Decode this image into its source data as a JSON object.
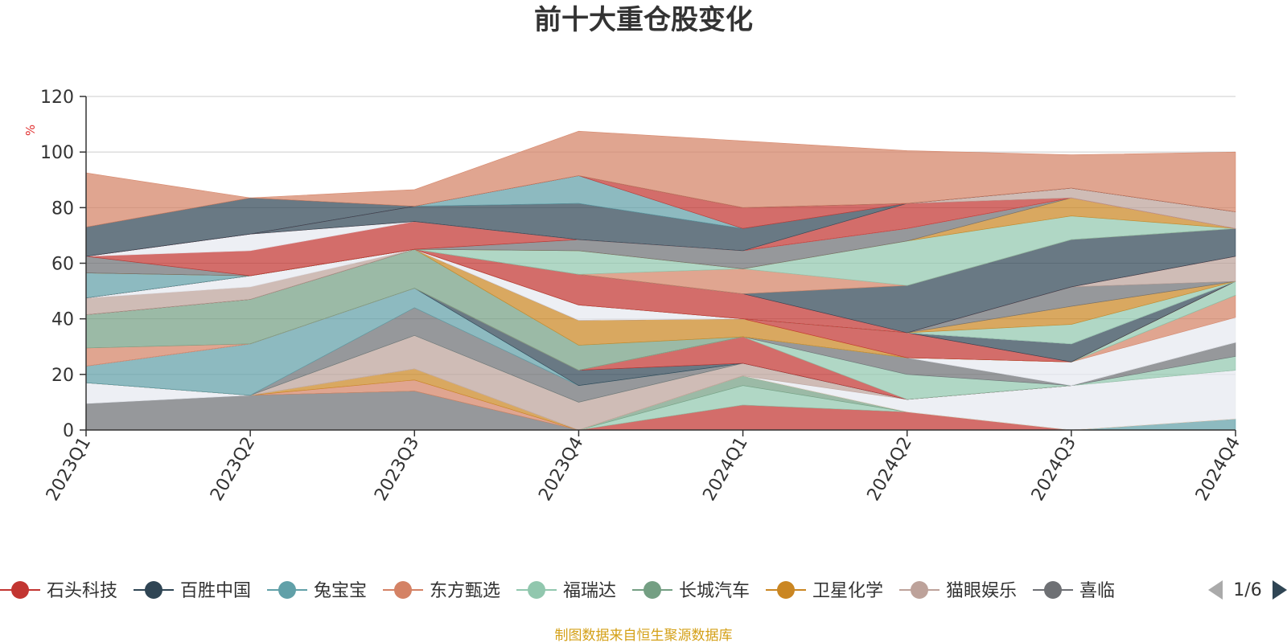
{
  "chart_data": {
    "type": "area",
    "title": "前十大重仓股变化",
    "ylabel": "%",
    "xlabel": "",
    "ylim": [
      0,
      120
    ],
    "yticks": [
      0,
      20,
      40,
      60,
      80,
      100,
      120
    ],
    "categories": [
      "2023Q1",
      "2023Q2",
      "2023Q3",
      "2023Q4",
      "2024Q1",
      "2024Q2",
      "2024Q3",
      "2024Q4"
    ],
    "grid": true,
    "legend_position": "bottom",
    "legend": {
      "items": [
        {
          "name": "石头科技",
          "color": "#c23531"
        },
        {
          "name": "百胜中国",
          "color": "#2f4554"
        },
        {
          "name": "兔宝宝",
          "color": "#61a0a8"
        },
        {
          "name": "东方甄选",
          "color": "#d48265"
        },
        {
          "name": "福瑞达",
          "color": "#91c7ae"
        },
        {
          "name": "长城汽车",
          "color": "#749f83"
        },
        {
          "name": "卫星化学",
          "color": "#ca8622"
        },
        {
          "name": "猫眼娱乐",
          "color": "#bda29a"
        },
        {
          "name": "喜临",
          "color": "#6e7074"
        }
      ],
      "page": "1/6"
    },
    "series": [
      {
        "color": "#6e7074",
        "values": [
          9.5,
          12.5,
          14,
          0,
          0,
          0,
          0,
          0
        ]
      },
      {
        "color": "#e6e9f0",
        "values": [
          7.5,
          0,
          0,
          0,
          0,
          0,
          0,
          0
        ]
      },
      {
        "color": "#c23531",
        "values": [
          0,
          0,
          0,
          0,
          9,
          6.5,
          0,
          0
        ]
      },
      {
        "color": "#91c7ae",
        "values": [
          0,
          0,
          0,
          0,
          7,
          0,
          0,
          0
        ]
      },
      {
        "color": "#749f83",
        "values": [
          0,
          0,
          0,
          0,
          3.5,
          0,
          0,
          0
        ]
      },
      {
        "color": "#61a0a8",
        "values": [
          0,
          0,
          0,
          0,
          0,
          0,
          0,
          4
        ]
      },
      {
        "color": "#d48265",
        "values": [
          0,
          0,
          4,
          0,
          0,
          0,
          0,
          0
        ]
      },
      {
        "color": "#ca8622",
        "values": [
          0,
          0,
          4,
          0,
          0,
          0,
          0,
          0
        ]
      },
      {
        "color": "#e6e9f0",
        "values": [
          0,
          0,
          0,
          0,
          0,
          4.5,
          16,
          17.5
        ]
      },
      {
        "color": "#bda29a",
        "values": [
          0,
          0,
          12,
          10,
          4.5,
          0,
          0,
          0
        ]
      },
      {
        "color": "#91c7ae",
        "values": [
          0,
          0,
          0,
          0,
          0,
          0,
          0,
          5
        ]
      },
      {
        "color": "#6e7074",
        "values": [
          0,
          0,
          10,
          6,
          0,
          0,
          0,
          5
        ]
      },
      {
        "color": "#61a0a8",
        "values": [
          6,
          18.5,
          7,
          0,
          0,
          0,
          0,
          0
        ]
      },
      {
        "color": "#2f4554",
        "values": [
          0,
          0,
          0,
          5.5,
          0,
          0,
          0,
          0
        ]
      },
      {
        "color": "#c23531",
        "values": [
          0,
          0,
          0,
          0,
          9.5,
          0,
          0,
          0
        ]
      },
      {
        "color": "#91c7ae",
        "values": [
          0,
          0,
          0,
          0,
          0,
          9,
          0,
          0
        ]
      },
      {
        "color": "#6e7074",
        "values": [
          0,
          0,
          0,
          0,
          0,
          6,
          0,
          0
        ]
      },
      {
        "color": "#e6e9f0",
        "values": [
          0,
          0,
          0,
          0,
          0,
          0,
          8.5,
          9
        ]
      },
      {
        "color": "#d48265",
        "values": [
          6.5,
          0,
          0,
          0,
          0,
          0,
          0,
          8
        ]
      },
      {
        "color": "#749f83",
        "values": [
          12,
          16,
          14,
          9,
          0,
          0,
          0,
          0
        ]
      },
      {
        "color": "#91c7ae",
        "values": [
          0,
          0,
          0,
          0,
          0,
          0,
          0,
          5
        ]
      },
      {
        "color": "#ca8622",
        "values": [
          0,
          0,
          0,
          9,
          6.5,
          0,
          0,
          0
        ]
      },
      {
        "color": "#c23531",
        "values": [
          0,
          0,
          0,
          0,
          0,
          9,
          0,
          0
        ]
      },
      {
        "color": "#2f4554",
        "values": [
          0,
          0,
          0,
          0,
          0,
          0,
          6.5,
          0
        ]
      },
      {
        "color": "#bda29a",
        "values": [
          6,
          4.5,
          0,
          0,
          0,
          0,
          0,
          0
        ]
      },
      {
        "color": "#e6e9f0",
        "values": [
          0,
          4,
          0,
          5.5,
          0,
          0,
          0,
          0
        ]
      },
      {
        "color": "#91c7ae",
        "values": [
          0,
          0,
          0,
          0,
          0,
          0,
          7,
          0
        ]
      },
      {
        "color": "#ca8622",
        "values": [
          0,
          0,
          0,
          0,
          0,
          0,
          6.5,
          0
        ]
      },
      {
        "color": "#6e7074",
        "values": [
          0,
          0,
          0,
          0,
          0,
          0,
          7,
          0
        ]
      },
      {
        "color": "#bda29a",
        "values": [
          0,
          0,
          0,
          0,
          0,
          0,
          0,
          9
        ]
      },
      {
        "color": "#c23531",
        "values": [
          0,
          0,
          0,
          11,
          9,
          0,
          0,
          0
        ]
      },
      {
        "color": "#2f4554",
        "values": [
          0,
          0,
          0,
          0,
          0,
          17,
          17,
          10
        ]
      },
      {
        "color": "#61a0a8",
        "values": [
          9,
          0,
          0,
          0,
          0,
          0,
          0,
          0
        ]
      },
      {
        "color": "#d48265",
        "values": [
          0,
          0,
          0,
          0,
          9,
          0,
          0,
          0
        ]
      },
      {
        "color": "#91c7ae",
        "values": [
          0,
          0,
          0,
          8.5,
          0,
          16,
          8.5,
          0
        ]
      },
      {
        "color": "#ca8622",
        "values": [
          0,
          0,
          0,
          0,
          0,
          0,
          6.5,
          0
        ]
      },
      {
        "color": "#6e7074",
        "values": [
          6,
          0,
          0,
          4,
          6.5,
          4.5,
          0,
          0
        ]
      },
      {
        "color": "#c23531",
        "values": [
          0,
          9,
          10,
          0,
          0,
          0,
          0,
          0
        ]
      },
      {
        "color": "#e6e9f0",
        "values": [
          0,
          6,
          0,
          0,
          0,
          0,
          0,
          0
        ]
      },
      {
        "color": "#c23531",
        "values": [
          0,
          0,
          0,
          0,
          0,
          9,
          0,
          0
        ]
      },
      {
        "color": "#bda29a",
        "values": [
          0,
          0,
          0,
          0,
          0,
          0,
          3.5,
          6
        ]
      },
      {
        "color": "#2f4554",
        "values": [
          0,
          0,
          5.5,
          13,
          8,
          0,
          0,
          0
        ]
      },
      {
        "color": "#61a0a8",
        "values": [
          0,
          0,
          0,
          10,
          0,
          0,
          0,
          0
        ]
      },
      {
        "color": "#c23531",
        "values": [
          0,
          0,
          0,
          0,
          7.5,
          0,
          0,
          0
        ]
      },
      {
        "color": "#2f4554",
        "values": [
          10.5,
          13,
          0,
          0,
          0,
          0,
          0,
          0
        ]
      },
      {
        "color": "#d48265",
        "values": [
          19.5,
          0,
          6,
          16,
          24,
          19,
          12,
          21.5
        ]
      }
    ]
  },
  "source_note": "制图数据来自恒生聚源数据库"
}
